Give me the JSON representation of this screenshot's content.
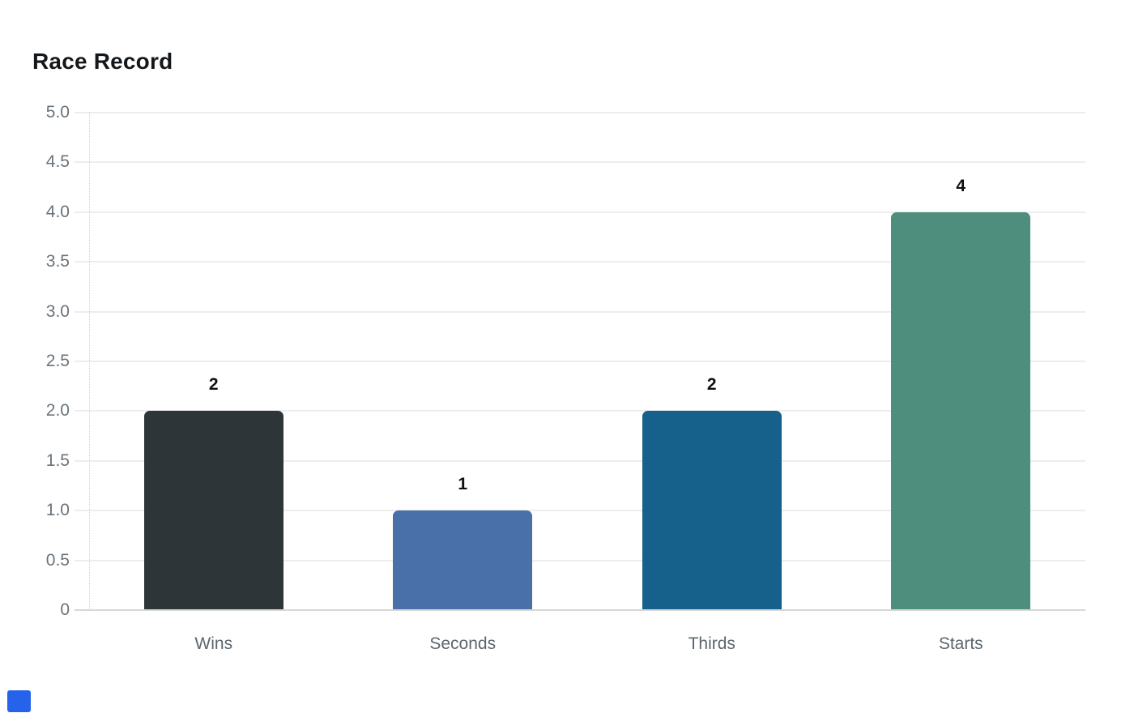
{
  "header": {
    "title": "Race Record"
  },
  "chart_data": {
    "type": "bar",
    "title": "Race Record",
    "categories": [
      "Wins",
      "Seconds",
      "Thirds",
      "Starts"
    ],
    "values": [
      2,
      1,
      2,
      4
    ],
    "value_labels": [
      "2",
      "1",
      "2",
      "4"
    ],
    "bar_colors": [
      "#2d3538",
      "#4a70a9",
      "#16618c",
      "#4e8e7d"
    ],
    "xlabel": "",
    "ylabel": "",
    "ylim": [
      0,
      5
    ],
    "ytick_step": 0.5,
    "ytick_labels": [
      "0",
      "0.5",
      "1.0",
      "1.5",
      "2.0",
      "2.5",
      "3.0",
      "3.5",
      "4.0",
      "4.5",
      "5.0"
    ],
    "grid": true,
    "legend_position": "none"
  },
  "colors": {
    "background": "#ffffff",
    "title": "#15181b",
    "grid_line": "#ededed",
    "axis_line": "#d8d8d8",
    "y_axis_dotted_line": "#d4d4d4",
    "y_tick_label": "#6a737a",
    "x_tick_label": "#5c666d",
    "value_label": "#0d1014"
  },
  "artifacts": {
    "blue_square_color": "#2563eb"
  }
}
